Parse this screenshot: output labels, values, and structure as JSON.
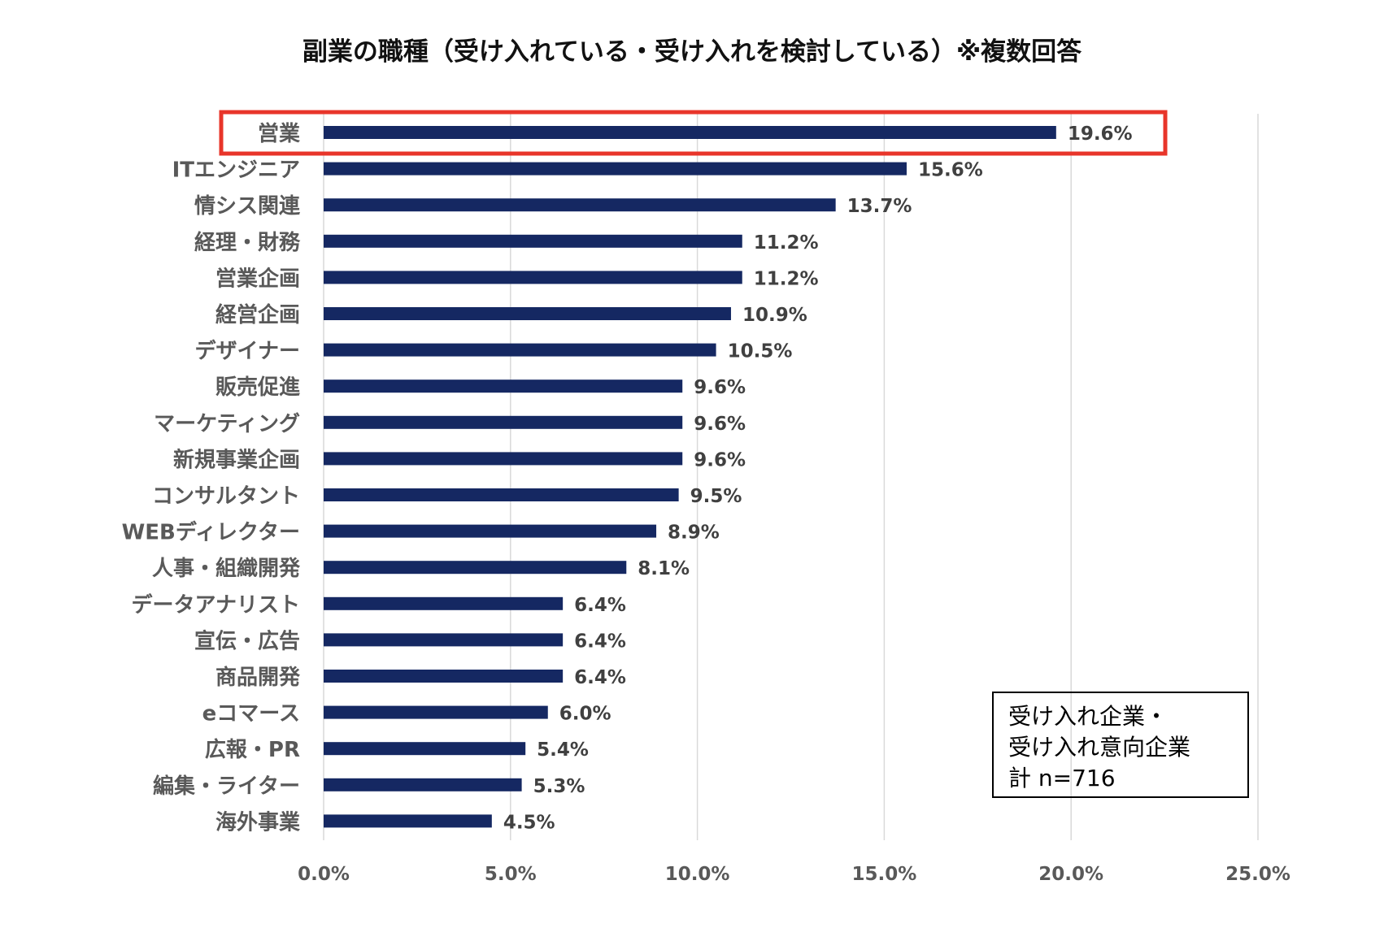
{
  "chart_data": {
    "type": "bar",
    "orientation": "horizontal",
    "title": "副業の職種（受け入れている・受け入れを検討している）※複数回答",
    "categories": [
      "営業",
      "ITエンジニア",
      "情シス関連",
      "経理・財務",
      "営業企画",
      "経営企画",
      "デザイナー",
      "販売促進",
      "マーケティング",
      "新規事業企画",
      "コンサルタント",
      "WEBディレクター",
      "人事・組織開発",
      "データアナリスト",
      "宣伝・広告",
      "商品開発",
      "eコマース",
      "広報・PR",
      "編集・ライター",
      "海外事業"
    ],
    "values": [
      19.6,
      15.6,
      13.7,
      11.2,
      11.2,
      10.9,
      10.5,
      9.6,
      9.6,
      9.6,
      9.5,
      8.9,
      8.1,
      6.4,
      6.4,
      6.4,
      6.0,
      5.4,
      5.3,
      4.5
    ],
    "value_labels": [
      "19.6%",
      "15.6%",
      "13.7%",
      "11.2%",
      "11.2%",
      "10.9%",
      "10.5%",
      "9.6%",
      "9.6%",
      "9.6%",
      "9.5%",
      "8.9%",
      "8.1%",
      "6.4%",
      "6.4%",
      "6.4%",
      "6.0%",
      "5.4%",
      "5.3%",
      "4.5%"
    ],
    "xlim": [
      0,
      25
    ],
    "xticks": [
      0,
      5,
      10,
      15,
      20,
      25
    ],
    "xtick_labels": [
      "0.0%",
      "5.0%",
      "10.0%",
      "15.0%",
      "20.0%",
      "25.0%"
    ],
    "grid": true,
    "highlighted_category": "営業",
    "annotation": [
      "受け入れ企業・",
      "受け入れ意向企業",
      "計 n=716"
    ],
    "colors": {
      "bar": "#152862",
      "highlight_box": "#e8352a",
      "grid": "#d9d9d9"
    }
  }
}
